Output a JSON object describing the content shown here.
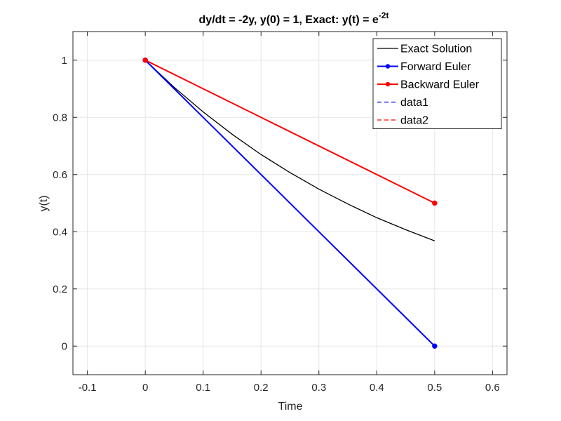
{
  "colors": {
    "exact": "#000000",
    "forward": "#0000ff",
    "backward": "#ff0000",
    "grid": "#e6e6e6",
    "axes": "#262626"
  },
  "chart_data": {
    "type": "line",
    "title": {
      "main": "dy/dt = -2y,  y(0) = 1, Exact: y(t) = e",
      "superscript": "-2t"
    },
    "xlabel": "Time",
    "ylabel": "y(t)",
    "xlim": [
      -0.125,
      0.625
    ],
    "ylim": [
      -0.1,
      1.1
    ],
    "xticks": [
      -0.1,
      0,
      0.1,
      0.2,
      0.3,
      0.4,
      0.5,
      0.6
    ],
    "xtick_labels": [
      "-0.1",
      "0",
      "0.1",
      "0.2",
      "0.3",
      "0.4",
      "0.5",
      "0.6"
    ],
    "yticks": [
      0,
      0.2,
      0.4,
      0.6,
      0.8,
      1
    ],
    "ytick_labels": [
      "0",
      "0.2",
      "0.4",
      "0.6",
      "0.8",
      "1"
    ],
    "grid": true,
    "legend_position": "top-right",
    "series": [
      {
        "name": "Exact Solution",
        "style": "solid",
        "marker": false,
        "color": "#000000",
        "x": [
          0,
          0.05,
          0.1,
          0.15,
          0.2,
          0.25,
          0.3,
          0.35,
          0.4,
          0.45,
          0.5
        ],
        "y": [
          1,
          0.905,
          0.819,
          0.741,
          0.67,
          0.607,
          0.549,
          0.497,
          0.449,
          0.407,
          0.368
        ]
      },
      {
        "name": "Forward Euler",
        "style": "solid",
        "marker": true,
        "color": "#0000ff",
        "x": [
          0,
          0.5
        ],
        "y": [
          1,
          0
        ]
      },
      {
        "name": "Backward Euler",
        "style": "solid",
        "marker": true,
        "color": "#ff0000",
        "x": [
          0,
          0.5
        ],
        "y": [
          1,
          0.5
        ]
      },
      {
        "name": "data1",
        "style": "dashed",
        "marker": false,
        "color": "#0000ff",
        "x": [],
        "y": []
      },
      {
        "name": "data2",
        "style": "dashed",
        "marker": false,
        "color": "#ff0000",
        "x": [],
        "y": []
      }
    ]
  }
}
